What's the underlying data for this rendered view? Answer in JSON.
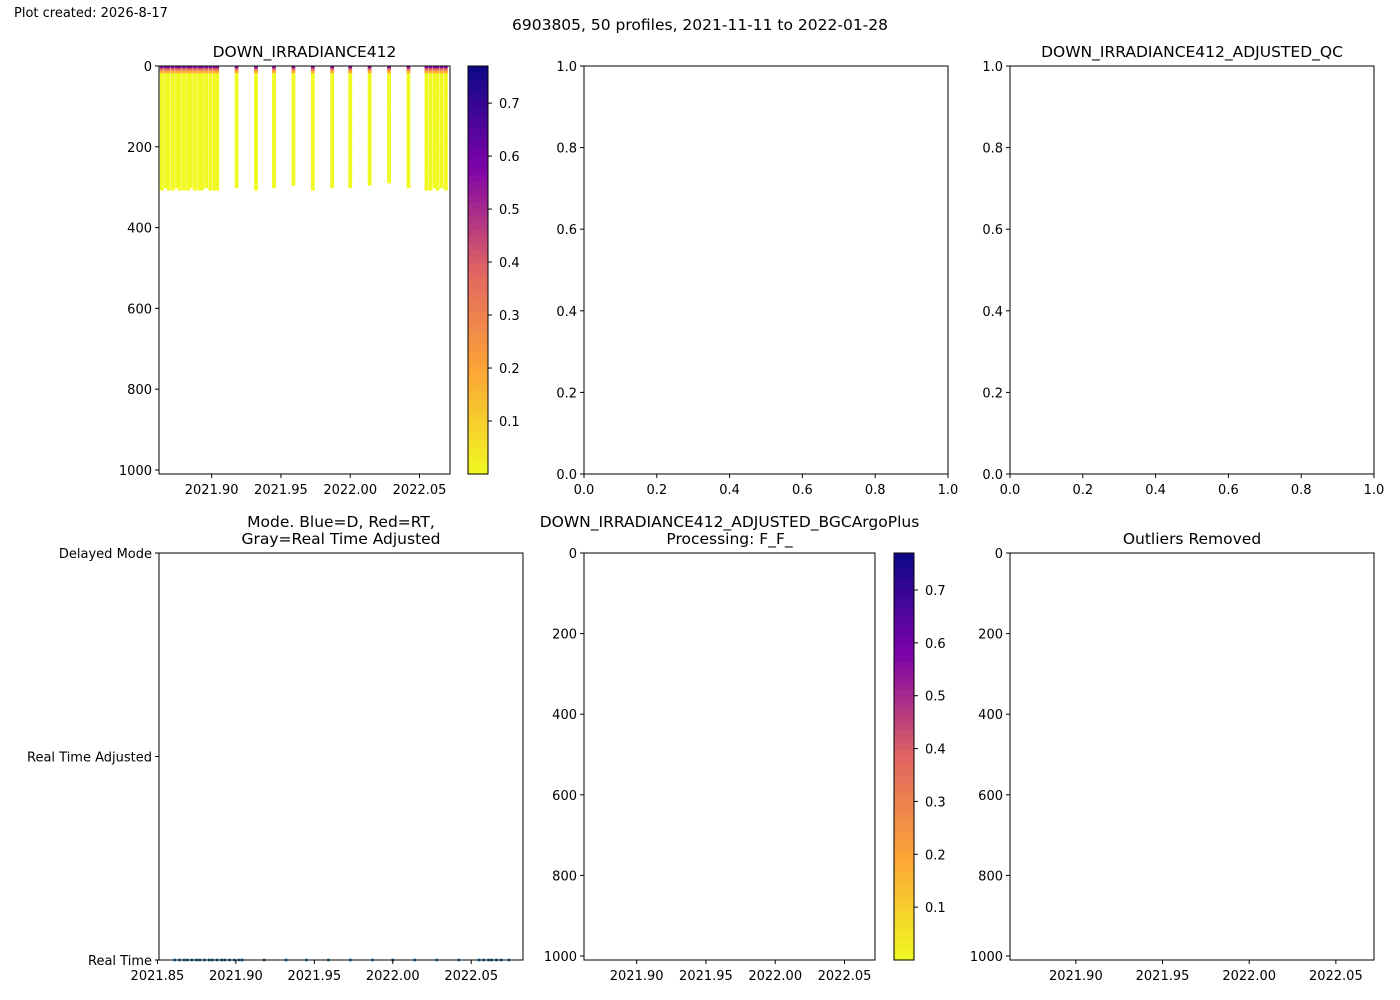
{
  "plot_created": "Plot created: 2026-8-17",
  "suptitle": "6903805, 50 profiles, 2021-11-11 to 2022-01-28",
  "colors": {
    "series": "#1f77b4",
    "axis": "#000000",
    "colormap": "plasma_r"
  },
  "chart_data": [
    {
      "id": "irradiance",
      "type": "heatmap",
      "title": "DOWN_IRRADIANCE412",
      "xlabel": "",
      "ylabel": "",
      "xlim": [
        2021.862,
        2022.072
      ],
      "ylim": [
        1010,
        0
      ],
      "y_inverted": true,
      "xticks": [
        2021.9,
        2021.95,
        2022.0,
        2022.05
      ],
      "xtick_labels": [
        "2021.90",
        "2021.95",
        "2022.00",
        "2022.05"
      ],
      "yticks": [
        0,
        200,
        400,
        600,
        800,
        1000
      ],
      "ytick_labels": [
        "0",
        "200",
        "400",
        "600",
        "800",
        "1000"
      ],
      "colorbar": {
        "range": [
          0.0,
          0.77
        ],
        "ticks": [
          0.1,
          0.2,
          0.3,
          0.4,
          0.5,
          0.6,
          0.7
        ],
        "tick_labels": [
          "0.1",
          "0.2",
          "0.3",
          "0.4",
          "0.5",
          "0.6",
          "0.7"
        ]
      },
      "profiles": [
        {
          "x": 2021.864,
          "max_depth": 300
        },
        {
          "x": 2021.867,
          "max_depth": 295
        },
        {
          "x": 2021.869,
          "max_depth": 300
        },
        {
          "x": 2021.872,
          "max_depth": 300
        },
        {
          "x": 2021.875,
          "max_depth": 295
        },
        {
          "x": 2021.877,
          "max_depth": 300
        },
        {
          "x": 2021.88,
          "max_depth": 300
        },
        {
          "x": 2021.883,
          "max_depth": 300
        },
        {
          "x": 2021.885,
          "max_depth": 298
        },
        {
          "x": 2021.888,
          "max_depth": 300
        },
        {
          "x": 2021.891,
          "max_depth": 300
        },
        {
          "x": 2021.893,
          "max_depth": 300
        },
        {
          "x": 2021.896,
          "max_depth": 296
        },
        {
          "x": 2021.899,
          "max_depth": 300
        },
        {
          "x": 2021.902,
          "max_depth": 300
        },
        {
          "x": 2021.904,
          "max_depth": 300
        },
        {
          "x": 2021.918,
          "max_depth": 296
        },
        {
          "x": 2021.932,
          "max_depth": 300
        },
        {
          "x": 2021.945,
          "max_depth": 296
        },
        {
          "x": 2021.959,
          "max_depth": 292
        },
        {
          "x": 2021.973,
          "max_depth": 300
        },
        {
          "x": 2021.987,
          "max_depth": 296
        },
        {
          "x": 2022.0,
          "max_depth": 296
        },
        {
          "x": 2022.014,
          "max_depth": 292
        },
        {
          "x": 2022.028,
          "max_depth": 282
        },
        {
          "x": 2022.042,
          "max_depth": 296
        },
        {
          "x": 2022.055,
          "max_depth": 300
        },
        {
          "x": 2022.058,
          "max_depth": 300
        },
        {
          "x": 2022.061,
          "max_depth": 298
        },
        {
          "x": 2022.063,
          "max_depth": 300
        },
        {
          "x": 2022.066,
          "max_depth": 296
        },
        {
          "x": 2022.069,
          "max_depth": 300
        }
      ]
    },
    {
      "id": "adjusted",
      "type": "scatter",
      "title": "",
      "xlabel": "",
      "ylabel": "",
      "xlim": [
        0,
        1
      ],
      "ylim": [
        0,
        1
      ],
      "xticks": [
        0.0,
        0.2,
        0.4,
        0.6,
        0.8,
        1.0
      ],
      "xtick_labels": [
        "0.0",
        "0.2",
        "0.4",
        "0.6",
        "0.8",
        "1.0"
      ],
      "yticks": [
        0.0,
        0.2,
        0.4,
        0.6,
        0.8,
        1.0
      ],
      "ytick_labels": [
        "0.0",
        "0.2",
        "0.4",
        "0.6",
        "0.8",
        "1.0"
      ],
      "points": []
    },
    {
      "id": "qc",
      "type": "scatter",
      "title": "DOWN_IRRADIANCE412_ADJUSTED_QC",
      "xlabel": "",
      "ylabel": "",
      "xlim": [
        0,
        1
      ],
      "ylim": [
        0,
        1
      ],
      "xticks": [
        0.0,
        0.2,
        0.4,
        0.6,
        0.8,
        1.0
      ],
      "xtick_labels": [
        "0.0",
        "0.2",
        "0.4",
        "0.6",
        "0.8",
        "1.0"
      ],
      "yticks": [
        0.0,
        0.2,
        0.4,
        0.6,
        0.8,
        1.0
      ],
      "ytick_labels": [
        "0.0",
        "0.2",
        "0.4",
        "0.6",
        "0.8",
        "1.0"
      ],
      "points": []
    },
    {
      "id": "mode",
      "type": "scatter",
      "title": [
        "Mode. Blue=D, Red=RT,",
        "Gray=Real Time Adjusted"
      ],
      "xlabel": "",
      "ylabel": "",
      "xlim": [
        2021.851,
        2022.083
      ],
      "ylim": [
        0,
        2
      ],
      "xticks": [
        2021.85,
        2021.9,
        2021.95,
        2022.0,
        2022.05
      ],
      "xtick_labels": [
        "2021.85",
        "2021.90",
        "2021.95",
        "2022.00",
        "2022.05"
      ],
      "yticks": [
        2,
        1,
        0
      ],
      "ytick_labels": [
        "Delayed Mode",
        "Real Time Adjusted",
        "Real Time"
      ],
      "series": [
        {
          "x": [
            2021.861,
            2021.864,
            2021.867,
            2021.869,
            2021.872,
            2021.875,
            2021.877,
            2021.88,
            2021.883,
            2021.885,
            2021.888,
            2021.891,
            2021.893,
            2021.896,
            2021.899,
            2021.902,
            2021.904,
            2021.918,
            2021.932,
            2021.945,
            2021.959,
            2021.973,
            2021.987,
            2022.0,
            2022.014,
            2022.028,
            2022.042,
            2022.055,
            2022.058,
            2022.061,
            2022.063,
            2022.066,
            2022.069,
            2022.074
          ],
          "y": [
            0,
            0,
            0,
            0,
            0,
            0,
            0,
            0,
            0,
            0,
            0,
            0,
            0,
            0,
            0,
            0,
            0,
            0,
            0,
            0,
            0,
            0,
            0,
            0,
            0,
            0,
            0,
            0,
            0,
            0,
            0,
            0,
            0,
            0
          ]
        }
      ]
    },
    {
      "id": "bgcargo",
      "type": "heatmap",
      "title": [
        "DOWN_IRRADIANCE412_ADJUSTED_BGCArgoPlus",
        "Processing: F_F_"
      ],
      "xlabel": "",
      "ylabel": "",
      "xlim": [
        2021.862,
        2022.072
      ],
      "ylim": [
        1010,
        0
      ],
      "y_inverted": true,
      "xticks": [
        2021.9,
        2021.95,
        2022.0,
        2022.05
      ],
      "xtick_labels": [
        "2021.90",
        "2021.95",
        "2022.00",
        "2022.05"
      ],
      "yticks": [
        0,
        200,
        400,
        600,
        800,
        1000
      ],
      "ytick_labels": [
        "0",
        "200",
        "400",
        "600",
        "800",
        "1000"
      ],
      "colorbar": {
        "range": [
          0.0,
          0.77
        ],
        "ticks": [
          0.1,
          0.2,
          0.3,
          0.4,
          0.5,
          0.6,
          0.7
        ],
        "tick_labels": [
          "0.1",
          "0.2",
          "0.3",
          "0.4",
          "0.5",
          "0.6",
          "0.7"
        ]
      },
      "profiles": []
    },
    {
      "id": "outliers",
      "type": "scatter",
      "title": "Outliers Removed",
      "xlabel": "",
      "ylabel": "",
      "xlim": [
        2021.862,
        2022.072
      ],
      "ylim": [
        1010,
        0
      ],
      "y_inverted": true,
      "xticks": [
        2021.9,
        2021.95,
        2022.0,
        2022.05
      ],
      "xtick_labels": [
        "2021.90",
        "2021.95",
        "2022.00",
        "2022.05"
      ],
      "yticks": [
        0,
        200,
        400,
        600,
        800,
        1000
      ],
      "ytick_labels": [
        "0",
        "200",
        "400",
        "600",
        "800",
        "1000"
      ],
      "points": []
    }
  ]
}
